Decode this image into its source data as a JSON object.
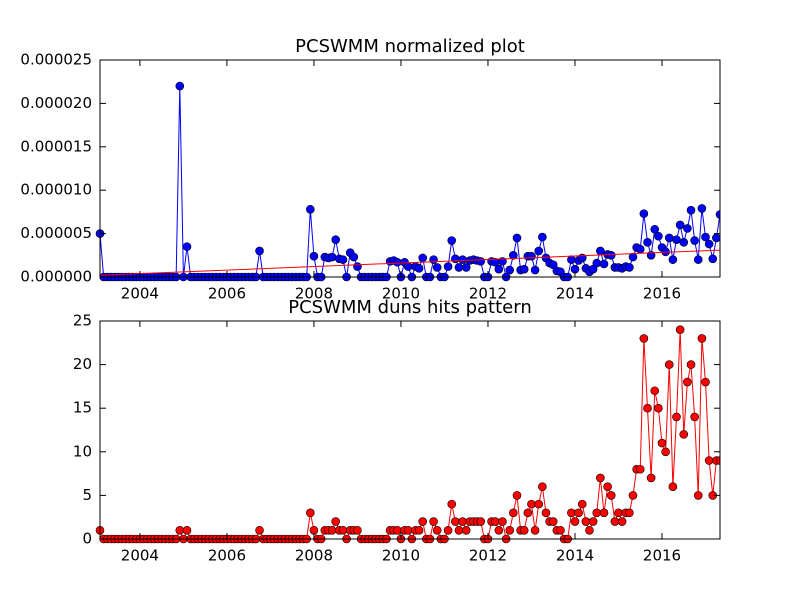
{
  "chart_data": [
    {
      "type": "line",
      "title": "PCSWMM normalized plot",
      "x": [
        2003.083,
        2003.167,
        2003.25,
        2003.333,
        2003.417,
        2003.5,
        2003.583,
        2003.667,
        2003.75,
        2003.833,
        2003.917,
        2004,
        2004.083,
        2004.167,
        2004.25,
        2004.333,
        2004.417,
        2004.5,
        2004.583,
        2004.667,
        2004.75,
        2004.833,
        2004.917,
        2005,
        2005.083,
        2005.167,
        2005.25,
        2005.333,
        2005.417,
        2005.5,
        2005.583,
        2005.667,
        2005.75,
        2005.833,
        2005.917,
        2006,
        2006.083,
        2006.167,
        2006.25,
        2006.333,
        2006.417,
        2006.5,
        2006.583,
        2006.667,
        2006.75,
        2006.833,
        2006.917,
        2007,
        2007.083,
        2007.167,
        2007.25,
        2007.333,
        2007.417,
        2007.5,
        2007.583,
        2007.667,
        2007.75,
        2007.833,
        2007.917,
        2008,
        2008.083,
        2008.167,
        2008.25,
        2008.333,
        2008.417,
        2008.5,
        2008.583,
        2008.667,
        2008.75,
        2008.833,
        2008.917,
        2009,
        2009.083,
        2009.167,
        2009.25,
        2009.333,
        2009.417,
        2009.5,
        2009.583,
        2009.667,
        2009.75,
        2009.833,
        2009.917,
        2010,
        2010.083,
        2010.167,
        2010.25,
        2010.333,
        2010.417,
        2010.5,
        2010.583,
        2010.667,
        2010.75,
        2010.833,
        2010.917,
        2011,
        2011.083,
        2011.167,
        2011.25,
        2011.333,
        2011.417,
        2011.5,
        2011.583,
        2011.667,
        2011.75,
        2011.833,
        2011.917,
        2012,
        2012.083,
        2012.167,
        2012.25,
        2012.333,
        2012.417,
        2012.5,
        2012.583,
        2012.667,
        2012.75,
        2012.833,
        2012.917,
        2013,
        2013.083,
        2013.167,
        2013.25,
        2013.333,
        2013.417,
        2013.5,
        2013.583,
        2013.667,
        2013.75,
        2013.833,
        2013.917,
        2014,
        2014.083,
        2014.167,
        2014.25,
        2014.333,
        2014.417,
        2014.5,
        2014.583,
        2014.667,
        2014.75,
        2014.833,
        2014.917,
        2015,
        2015.083,
        2015.167,
        2015.25,
        2015.333,
        2015.417,
        2015.5,
        2015.583,
        2015.667,
        2015.75,
        2015.833,
        2015.917,
        2016,
        2016.083,
        2016.167,
        2016.25,
        2016.333,
        2016.417,
        2016.5,
        2016.583,
        2016.667,
        2016.75,
        2016.833,
        2016.917,
        2017,
        2017.083,
        2017.167,
        2017.25,
        2017.333
      ],
      "series": [
        {
          "color": "#0000ff",
          "marker": true,
          "values": [
            5e-06,
            0,
            0,
            0,
            0,
            0,
            0,
            0,
            0,
            0,
            0,
            0,
            0,
            0,
            0,
            0,
            0,
            0,
            0,
            0,
            0,
            0,
            2.2e-05,
            0,
            3.5e-06,
            0,
            0,
            0,
            0,
            0,
            0,
            0,
            0,
            0,
            0,
            0,
            0,
            0,
            0,
            0,
            0,
            0,
            0,
            0,
            3e-06,
            0,
            0,
            0,
            0,
            0,
            0,
            0,
            0,
            0,
            0,
            0,
            0,
            0,
            7.8e-06,
            2.4e-06,
            0,
            0,
            2.3e-06,
            2.2e-06,
            2.3e-06,
            4.3e-06,
            2.1e-06,
            2e-06,
            0,
            2.8e-06,
            2.3e-06,
            1.2e-06,
            0,
            0,
            0,
            0,
            0,
            0,
            0,
            0,
            1.8e-06,
            1.9e-06,
            1.7e-06,
            0,
            1.7e-06,
            1.2e-06,
            0,
            1.2e-06,
            1e-06,
            2.2e-06,
            0,
            0,
            2e-06,
            1.1e-06,
            0,
            0,
            1.2e-06,
            4.2e-06,
            2.1e-06,
            1.1e-06,
            2e-06,
            1.1e-06,
            1.9e-06,
            2e-06,
            1.9e-06,
            1.8e-06,
            0,
            0,
            1.8e-06,
            1.7e-06,
            9e-07,
            1.8e-06,
            0,
            8e-07,
            2.5e-06,
            4.5e-06,
            8e-07,
            9e-07,
            2.4e-06,
            2.4e-06,
            8e-07,
            3e-06,
            4.6e-06,
            2.2e-06,
            1.6e-06,
            1.4e-06,
            7e-07,
            6e-07,
            0,
            0,
            2e-06,
            9e-07,
            1.9e-06,
            2.2e-06,
            1e-06,
            6e-07,
            9e-07,
            1.6e-06,
            3e-06,
            1.5e-06,
            2.6e-06,
            2.5e-06,
            1.1e-06,
            1.1e-06,
            1e-06,
            1.2e-06,
            1.1e-06,
            2.3e-06,
            3.4e-06,
            3.2e-06,
            7.3e-06,
            4e-06,
            2.5e-06,
            5.5e-06,
            4.7e-06,
            3.4e-06,
            2.9e-06,
            4.5e-06,
            2e-06,
            4.3e-06,
            6e-06,
            4e-06,
            5.6e-06,
            7.7e-06,
            4.2e-06,
            2e-06,
            7.9e-06,
            4.6e-06,
            3.8e-06,
            2.1e-06,
            4.5e-06,
            7.2e-06
          ]
        },
        {
          "color": "#ff0000",
          "marker": false,
          "x": [
            2003.083,
            2017.333
          ],
          "values": [
            2e-07,
            3.1e-06
          ]
        }
      ],
      "xlim": [
        2003.083,
        2017.333
      ],
      "xticks": [
        2004,
        2006,
        2008,
        2010,
        2012,
        2014,
        2016
      ],
      "ylim": [
        0,
        2.5e-05
      ],
      "yticks": [
        {
          "value": 0,
          "label": "0.000000"
        },
        {
          "value": 5e-06,
          "label": "0.000005"
        },
        {
          "value": 1e-05,
          "label": "0.000010"
        },
        {
          "value": 1.5e-05,
          "label": "0.000015"
        },
        {
          "value": 2e-05,
          "label": "0.000020"
        },
        {
          "value": 2.5e-05,
          "label": "0.000025"
        }
      ]
    },
    {
      "type": "line",
      "title": "PCSWMM duns hits pattern",
      "x": [
        2003.083,
        2003.167,
        2003.25,
        2003.333,
        2003.417,
        2003.5,
        2003.583,
        2003.667,
        2003.75,
        2003.833,
        2003.917,
        2004,
        2004.083,
        2004.167,
        2004.25,
        2004.333,
        2004.417,
        2004.5,
        2004.583,
        2004.667,
        2004.75,
        2004.833,
        2004.917,
        2005,
        2005.083,
        2005.167,
        2005.25,
        2005.333,
        2005.417,
        2005.5,
        2005.583,
        2005.667,
        2005.75,
        2005.833,
        2005.917,
        2006,
        2006.083,
        2006.167,
        2006.25,
        2006.333,
        2006.417,
        2006.5,
        2006.583,
        2006.667,
        2006.75,
        2006.833,
        2006.917,
        2007,
        2007.083,
        2007.167,
        2007.25,
        2007.333,
        2007.417,
        2007.5,
        2007.583,
        2007.667,
        2007.75,
        2007.833,
        2007.917,
        2008,
        2008.083,
        2008.167,
        2008.25,
        2008.333,
        2008.417,
        2008.5,
        2008.583,
        2008.667,
        2008.75,
        2008.833,
        2008.917,
        2009,
        2009.083,
        2009.167,
        2009.25,
        2009.333,
        2009.417,
        2009.5,
        2009.583,
        2009.667,
        2009.75,
        2009.833,
        2009.917,
        2010,
        2010.083,
        2010.167,
        2010.25,
        2010.333,
        2010.417,
        2010.5,
        2010.583,
        2010.667,
        2010.75,
        2010.833,
        2010.917,
        2011,
        2011.083,
        2011.167,
        2011.25,
        2011.333,
        2011.417,
        2011.5,
        2011.583,
        2011.667,
        2011.75,
        2011.833,
        2011.917,
        2012,
        2012.083,
        2012.167,
        2012.25,
        2012.333,
        2012.417,
        2012.5,
        2012.583,
        2012.667,
        2012.75,
        2012.833,
        2012.917,
        2013,
        2013.083,
        2013.167,
        2013.25,
        2013.333,
        2013.417,
        2013.5,
        2013.583,
        2013.667,
        2013.75,
        2013.833,
        2013.917,
        2014,
        2014.083,
        2014.167,
        2014.25,
        2014.333,
        2014.417,
        2014.5,
        2014.583,
        2014.667,
        2014.75,
        2014.833,
        2014.917,
        2015,
        2015.083,
        2015.167,
        2015.25,
        2015.333,
        2015.417,
        2015.5,
        2015.583,
        2015.667,
        2015.75,
        2015.833,
        2015.917,
        2016,
        2016.083,
        2016.167,
        2016.25,
        2016.333,
        2016.417,
        2016.5,
        2016.583,
        2016.667,
        2016.75,
        2016.833,
        2016.917,
        2017,
        2017.083,
        2017.167,
        2017.25,
        2017.333
      ],
      "series": [
        {
          "color": "#ff0000",
          "marker": true,
          "values": [
            1,
            0,
            0,
            0,
            0,
            0,
            0,
            0,
            0,
            0,
            0,
            0,
            0,
            0,
            0,
            0,
            0,
            0,
            0,
            0,
            0,
            0,
            1,
            0,
            1,
            0,
            0,
            0,
            0,
            0,
            0,
            0,
            0,
            0,
            0,
            0,
            0,
            0,
            0,
            0,
            0,
            0,
            0,
            0,
            1,
            0,
            0,
            0,
            0,
            0,
            0,
            0,
            0,
            0,
            0,
            0,
            0,
            0,
            3,
            1,
            0,
            0,
            1,
            1,
            1,
            2,
            1,
            1,
            0,
            1,
            1,
            1,
            0,
            0,
            0,
            0,
            0,
            0,
            0,
            0,
            1,
            1,
            1,
            0,
            1,
            1,
            0,
            1,
            1,
            2,
            0,
            0,
            2,
            1,
            0,
            0,
            1,
            4,
            2,
            1,
            2,
            1,
            2,
            2,
            2,
            2,
            0,
            0,
            2,
            2,
            1,
            2,
            0,
            1,
            3,
            5,
            1,
            1,
            3,
            4,
            1,
            4,
            6,
            3,
            2,
            2,
            1,
            1,
            0,
            0,
            3,
            2,
            3,
            4,
            2,
            1,
            2,
            3,
            7,
            3,
            6,
            5,
            2,
            3,
            2,
            3,
            3,
            5,
            8,
            8,
            23,
            15,
            7,
            17,
            15,
            11,
            10,
            20,
            6,
            14,
            24,
            12,
            18,
            20,
            14,
            5,
            23,
            18,
            9,
            5,
            9,
            9
          ]
        }
      ],
      "xlim": [
        2003.083,
        2017.333
      ],
      "xticks": [
        2004,
        2006,
        2008,
        2010,
        2012,
        2014,
        2016
      ],
      "ylim": [
        0,
        25
      ],
      "yticks": [
        0,
        5,
        10,
        15,
        20,
        25
      ]
    }
  ]
}
